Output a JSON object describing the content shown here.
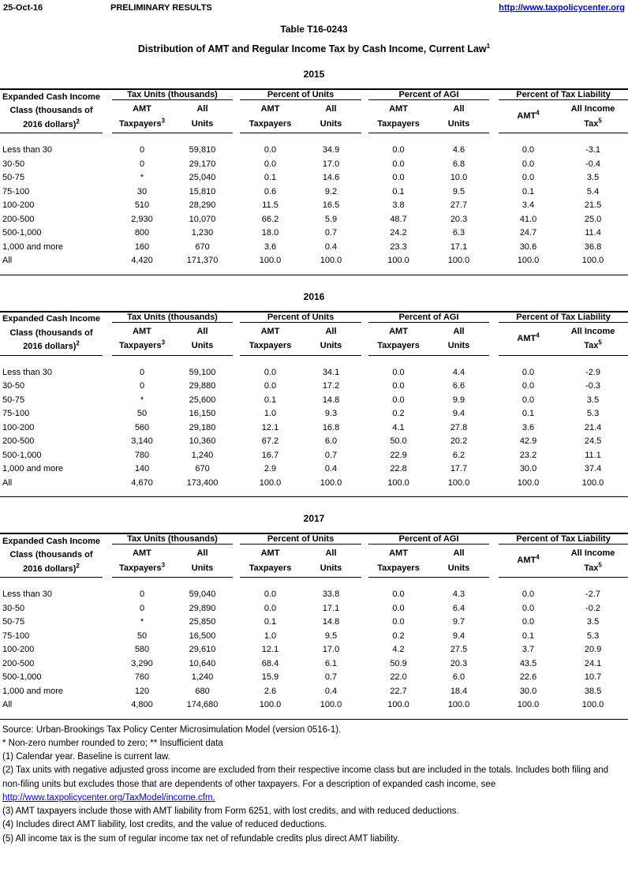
{
  "meta": {
    "date": "25-Oct-16",
    "status": "PRELIMINARY RESULTS",
    "url": "http://www.taxpolicycenter.org"
  },
  "title": {
    "table_number": "Table T16-0243",
    "main": "Distribution of AMT and Regular Income Tax by Cash Income, Current Law",
    "superscript": "1"
  },
  "table_header": {
    "row_label_lines": [
      "Expanded Cash Income",
      "Class (thousands of",
      "2016 dollars)"
    ],
    "row_label_sup": "2",
    "groups": [
      {
        "label": "Tax Units (thousands)",
        "sub": [
          {
            "lines": [
              "AMT",
              "Taxpayers"
            ],
            "sup": "3"
          },
          {
            "lines": [
              "All",
              "Units"
            ],
            "sup": ""
          }
        ]
      },
      {
        "label": "Percent of Units",
        "sub": [
          {
            "lines": [
              "AMT",
              "Taxpayers"
            ],
            "sup": ""
          },
          {
            "lines": [
              "All",
              "Units"
            ],
            "sup": ""
          }
        ]
      },
      {
        "label": "Percent of AGI",
        "sub": [
          {
            "lines": [
              "AMT",
              "Taxpayers"
            ],
            "sup": ""
          },
          {
            "lines": [
              "All",
              "Units"
            ],
            "sup": ""
          }
        ]
      },
      {
        "label": "Percent of Tax Liability",
        "sub": [
          {
            "lines": [
              "AMT"
            ],
            "sup": "4"
          },
          {
            "lines": [
              "All Income",
              "Tax"
            ],
            "sup": "5"
          }
        ]
      }
    ]
  },
  "tables": [
    {
      "year": "2015",
      "rows": [
        {
          "label": "Less than 30",
          "values": [
            "0",
            "59,810",
            "0.0",
            "34.9",
            "0.0",
            "4.6",
            "0.0",
            "-3.1"
          ]
        },
        {
          "label": "30-50",
          "values": [
            "0",
            "29,170",
            "0.0",
            "17.0",
            "0.0",
            "6.8",
            "0.0",
            "-0.4"
          ]
        },
        {
          "label": "50-75",
          "values": [
            "*",
            "25,040",
            "0.1",
            "14.6",
            "0.0",
            "10.0",
            "0.0",
            "3.5"
          ]
        },
        {
          "label": "75-100",
          "values": [
            "30",
            "15,810",
            "0.6",
            "9.2",
            "0.1",
            "9.5",
            "0.1",
            "5.4"
          ]
        },
        {
          "label": "100-200",
          "values": [
            "510",
            "28,290",
            "11.5",
            "16.5",
            "3.8",
            "27.7",
            "3.4",
            "21.5"
          ]
        },
        {
          "label": "200-500",
          "values": [
            "2,930",
            "10,070",
            "66.2",
            "5.9",
            "48.7",
            "20.3",
            "41.0",
            "25.0"
          ]
        },
        {
          "label": "500-1,000",
          "values": [
            "800",
            "1,230",
            "18.0",
            "0.7",
            "24.2",
            "6.3",
            "24.7",
            "11.4"
          ]
        },
        {
          "label": "1,000 and more",
          "values": [
            "160",
            "670",
            "3.6",
            "0.4",
            "23.3",
            "17.1",
            "30.6",
            "36.8"
          ]
        },
        {
          "label": "All",
          "values": [
            "4,420",
            "171,370",
            "100.0",
            "100.0",
            "100.0",
            "100.0",
            "100.0",
            "100.0"
          ]
        }
      ]
    },
    {
      "year": "2016",
      "rows": [
        {
          "label": "Less than 30",
          "values": [
            "0",
            "59,100",
            "0.0",
            "34.1",
            "0.0",
            "4.4",
            "0.0",
            "-2.9"
          ]
        },
        {
          "label": "30-50",
          "values": [
            "0",
            "29,880",
            "0.0",
            "17.2",
            "0.0",
            "6.6",
            "0.0",
            "-0.3"
          ]
        },
        {
          "label": "50-75",
          "values": [
            "*",
            "25,600",
            "0.1",
            "14.8",
            "0.0",
            "9.9",
            "0.0",
            "3.5"
          ]
        },
        {
          "label": "75-100",
          "values": [
            "50",
            "16,150",
            "1.0",
            "9.3",
            "0.2",
            "9.4",
            "0.1",
            "5.3"
          ]
        },
        {
          "label": "100-200",
          "values": [
            "560",
            "29,180",
            "12.1",
            "16.8",
            "4.1",
            "27.8",
            "3.6",
            "21.4"
          ]
        },
        {
          "label": "200-500",
          "values": [
            "3,140",
            "10,360",
            "67.2",
            "6.0",
            "50.0",
            "20.2",
            "42.9",
            "24.5"
          ]
        },
        {
          "label": "500-1,000",
          "values": [
            "780",
            "1,240",
            "16.7",
            "0.7",
            "22.9",
            "6.2",
            "23.2",
            "11.1"
          ]
        },
        {
          "label": "1,000 and more",
          "values": [
            "140",
            "670",
            "2.9",
            "0.4",
            "22.8",
            "17.7",
            "30.0",
            "37.4"
          ]
        },
        {
          "label": "All",
          "values": [
            "4,670",
            "173,400",
            "100.0",
            "100.0",
            "100.0",
            "100.0",
            "100.0",
            "100.0"
          ]
        }
      ]
    },
    {
      "year": "2017",
      "rows": [
        {
          "label": "Less than 30",
          "values": [
            "0",
            "59,040",
            "0.0",
            "33.8",
            "0.0",
            "4.3",
            "0.0",
            "-2.7"
          ]
        },
        {
          "label": "30-50",
          "values": [
            "0",
            "29,890",
            "0.0",
            "17.1",
            "0.0",
            "6.4",
            "0.0",
            "-0.2"
          ]
        },
        {
          "label": "50-75",
          "values": [
            "*",
            "25,850",
            "0.1",
            "14.8",
            "0.0",
            "9.7",
            "0.0",
            "3.5"
          ]
        },
        {
          "label": "75-100",
          "values": [
            "50",
            "16,500",
            "1.0",
            "9.5",
            "0.2",
            "9.4",
            "0.1",
            "5.3"
          ]
        },
        {
          "label": "100-200",
          "values": [
            "580",
            "29,610",
            "12.1",
            "17.0",
            "4.2",
            "27.5",
            "3.7",
            "20.9"
          ]
        },
        {
          "label": "200-500",
          "values": [
            "3,290",
            "10,640",
            "68.4",
            "6.1",
            "50.9",
            "20.3",
            "43.5",
            "24.1"
          ]
        },
        {
          "label": "500-1,000",
          "values": [
            "760",
            "1,240",
            "15.9",
            "0.7",
            "22.0",
            "6.0",
            "22.6",
            "10.7"
          ]
        },
        {
          "label": "1,000 and more",
          "values": [
            "120",
            "680",
            "2.6",
            "0.4",
            "22.7",
            "18.4",
            "30.0",
            "38.5"
          ]
        },
        {
          "label": "All",
          "values": [
            "4,800",
            "174,680",
            "100.0",
            "100.0",
            "100.0",
            "100.0",
            "100.0",
            "100.0"
          ]
        }
      ]
    }
  ],
  "notes": [
    {
      "text": "Source: Urban-Brookings Tax Policy Center Microsimulation Model (version 0516-1)."
    },
    {
      "text": "* Non-zero number rounded to zero; ** Insufficient data"
    },
    {
      "text": "(1) Calendar year. Baseline is current law."
    },
    {
      "text": "(2) Tax units with negative adjusted gross income are excluded from their respective income class but are included in the totals. Includes both filing and non-filing units but excludes those that are dependents of other taxpayers. For a description of expanded cash income, see"
    },
    {
      "text": "http://www.taxpolicycenter.org/TaxModel/income.cfm.",
      "link": true
    },
    {
      "text": "(3) AMT taxpayers include those with AMT liability from Form 6251, with lost credits, and with reduced deductions."
    },
    {
      "text": "(4) Includes direct AMT liability, lost credits, and the value of reduced deductions."
    },
    {
      "text": "(5) All income tax is the sum of regular income tax net of refundable credits plus direct AMT liability."
    }
  ]
}
